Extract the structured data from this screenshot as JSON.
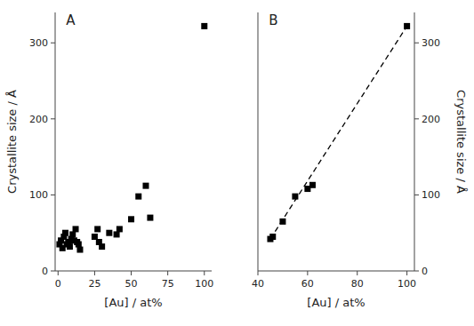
{
  "chart_data": [
    {
      "type": "scatter",
      "title": "A",
      "xlabel": "[Au] / at%",
      "ylabel": "Crystallite size / Å",
      "xlim": [
        -2,
        105
      ],
      "ylim": [
        0,
        340
      ],
      "xticks": [
        0,
        25,
        50,
        75,
        100
      ],
      "yticks": [
        0,
        100,
        200,
        300
      ],
      "series": [
        {
          "type": "scatter",
          "marker": "square",
          "color": "black",
          "x": [
            1,
            2,
            3,
            4,
            5,
            6,
            7,
            8,
            9,
            10,
            11,
            12,
            13,
            14,
            15,
            25,
            27,
            28,
            30,
            35,
            40,
            42,
            50,
            55,
            60,
            63,
            100
          ],
          "values": [
            35,
            40,
            30,
            45,
            50,
            35,
            38,
            32,
            42,
            48,
            40,
            55,
            38,
            35,
            28,
            45,
            55,
            38,
            32,
            50,
            48,
            55,
            68,
            98,
            112,
            70,
            322
          ]
        }
      ]
    },
    {
      "type": "scatter",
      "title": "B",
      "xlabel": "[Au] / at%",
      "ylabel": "Crystallite size / Å",
      "xlim": [
        40,
        103
      ],
      "ylim": [
        0,
        340
      ],
      "xticks": [
        40,
        60,
        80,
        100
      ],
      "yticks": [
        0,
        100,
        200,
        300
      ],
      "series": [
        {
          "type": "scatter",
          "marker": "square",
          "color": "black",
          "x": [
            45,
            46,
            50,
            55,
            60,
            62,
            100
          ],
          "values": [
            42,
            45,
            65,
            98,
            108,
            113,
            322
          ]
        },
        {
          "type": "line",
          "line_style": "dashed",
          "color": "black",
          "x": [
            45,
            100
          ],
          "values": [
            42,
            322
          ]
        }
      ]
    }
  ]
}
